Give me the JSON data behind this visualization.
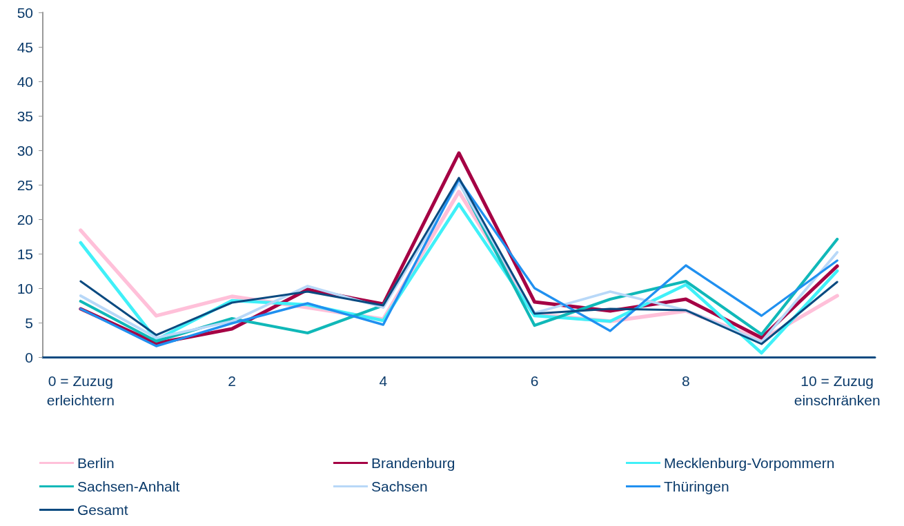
{
  "chart_data": {
    "type": "line",
    "categories": [
      "0 = Zuzug\nerleichtern",
      null,
      "2",
      null,
      "4",
      null,
      "6",
      null,
      "8",
      null,
      "10 = Zuzug\neinschränken"
    ],
    "series": [
      {
        "name": "Berlin",
        "color": "#ffc0d9",
        "values": [
          18.4,
          6.0,
          8.8,
          7.2,
          5.5,
          24.0,
          6.2,
          5.2,
          6.7,
          2.5,
          8.9
        ]
      },
      {
        "name": "Brandenburg",
        "color": "#a50044",
        "values": [
          7.0,
          2.0,
          4.1,
          9.8,
          7.7,
          29.6,
          8.0,
          6.7,
          8.4,
          2.8,
          13.2
        ]
      },
      {
        "name": "Mecklenburg-Vorpommern",
        "color": "#40f0f8",
        "values": [
          16.6,
          2.5,
          8.2,
          7.6,
          5.3,
          22.2,
          6.0,
          5.2,
          10.5,
          0.6,
          12.5
        ]
      },
      {
        "name": "Sachsen-Anhalt",
        "color": "#10b8b8",
        "values": [
          8.1,
          2.3,
          5.6,
          3.5,
          7.5,
          25.5,
          4.6,
          8.4,
          11.0,
          3.3,
          17.1
        ]
      },
      {
        "name": "Sachsen",
        "color": "#b8d8f8",
        "values": [
          8.9,
          2.8,
          5.2,
          10.3,
          7.2,
          25.3,
          6.4,
          9.5,
          6.8,
          2.2,
          15.2
        ]
      },
      {
        "name": "Thüringen",
        "color": "#2090f0",
        "values": [
          7.0,
          1.6,
          4.9,
          7.8,
          4.7,
          25.8,
          10.0,
          3.8,
          13.3,
          6.0,
          14.0
        ]
      },
      {
        "name": "Gesamt",
        "color": "#0a4a80",
        "values": [
          11.0,
          3.2,
          7.9,
          9.5,
          7.5,
          26.0,
          6.3,
          7.0,
          6.8,
          1.9,
          10.9
        ]
      }
    ],
    "ylim": [
      0,
      50
    ],
    "yticks": [
      0,
      5,
      10,
      15,
      20,
      25,
      30,
      35,
      40,
      45,
      50
    ],
    "grid": false,
    "legend": "bottom",
    "marker": "none",
    "line_style": "solid"
  }
}
